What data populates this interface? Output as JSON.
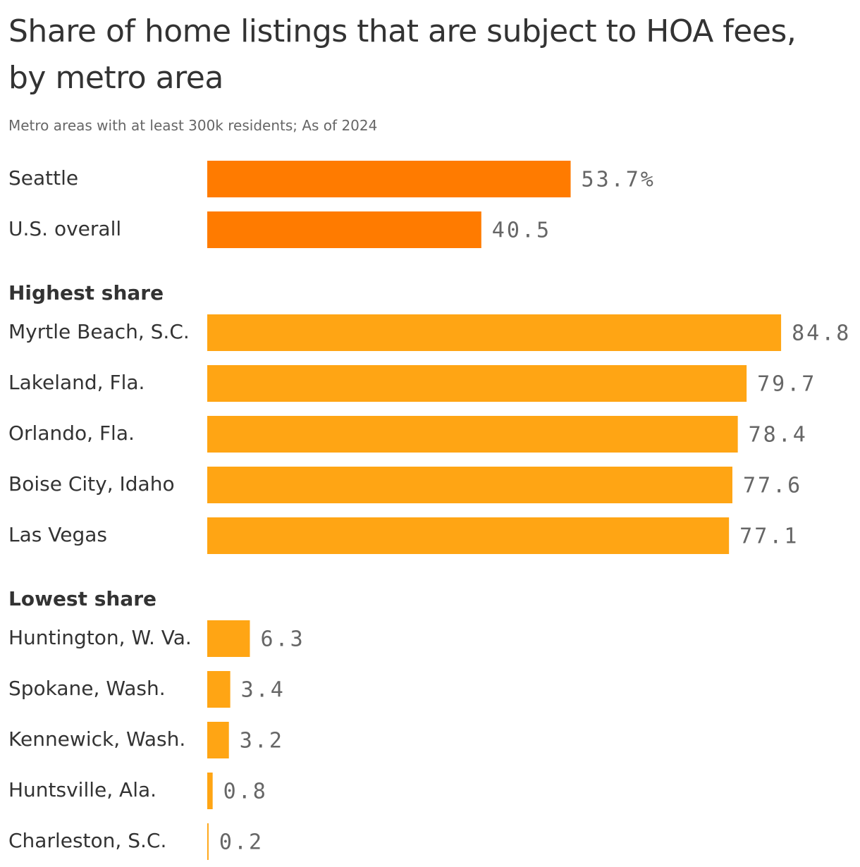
{
  "chart_data": {
    "type": "bar",
    "title": "Share of home listings that are subject to HOA fees, by metro area",
    "subtitle": "Metro areas with at least 300k residents; As of 2024",
    "groups": [
      {
        "categories": [
          "Seattle",
          "U.S. overall"
        ],
        "values": [
          53.7,
          40.5
        ],
        "value_labels": [
          "53.7%",
          "40.5"
        ],
        "color": "#ff7b00"
      },
      {
        "name": "Highest share",
        "categories": [
          "Myrtle Beach, S.C.",
          "Lakeland, Fla.",
          "Orlando, Fla.",
          "Boise City, Idaho",
          "Las Vegas"
        ],
        "values": [
          84.8,
          79.7,
          78.4,
          77.6,
          77.1
        ],
        "color": "#ffa514"
      },
      {
        "name": "Lowest share",
        "categories": [
          "Huntington, W. Va.",
          "Spokane, Wash.",
          "Kennewick, Wash.",
          "Huntsville, Ala.",
          "Charleston, S.C."
        ],
        "values": [
          6.3,
          3.4,
          3.2,
          0.8,
          0.2
        ],
        "color": "#ffa514"
      }
    ]
  }
}
